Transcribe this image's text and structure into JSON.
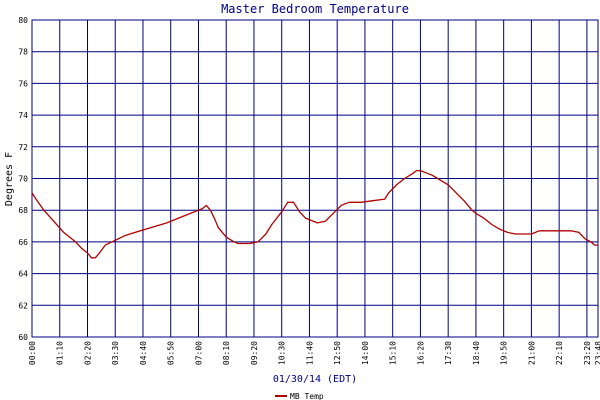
{
  "chart_data": {
    "type": "line",
    "title": "Master Bedroom Temperature",
    "xlabel": "01/30/14 (EDT)",
    "ylabel": "Degrees F",
    "ylim": [
      60,
      80
    ],
    "yticks": [
      "60",
      "62",
      "64",
      "66",
      "68",
      "70",
      "72",
      "74",
      "76",
      "78",
      "80"
    ],
    "xticks": [
      "00:00",
      "01:10",
      "02:20",
      "03:30",
      "04:40",
      "05:50",
      "07:00",
      "08:10",
      "09:20",
      "10:30",
      "11:40",
      "12:50",
      "14:00",
      "15:10",
      "16:20",
      "17:30",
      "18:40",
      "19:50",
      "21:00",
      "22:10",
      "23:20",
      "23:48"
    ],
    "xtick_minutes": [
      0,
      70,
      140,
      210,
      280,
      350,
      420,
      490,
      560,
      630,
      700,
      770,
      840,
      910,
      980,
      1050,
      1120,
      1190,
      1260,
      1330,
      1400,
      1428
    ],
    "xlim_minutes": [
      0,
      1428
    ],
    "grid": true,
    "legend_position": "bottom-center",
    "series": [
      {
        "name": "MB Temp",
        "color": "#b00000",
        "x_minutes": [
          0,
          10,
          30,
          55,
          80,
          110,
          125,
          140,
          150,
          160,
          170,
          185,
          210,
          235,
          260,
          300,
          340,
          380,
          420,
          430,
          440,
          450,
          460,
          470,
          490,
          510,
          520,
          550,
          570,
          590,
          605,
          630,
          645,
          660,
          675,
          690,
          720,
          740,
          760,
          780,
          800,
          830,
          860,
          890,
          900,
          920,
          940,
          960,
          970,
          980,
          990,
          1010,
          1030,
          1050,
          1070,
          1090,
          1110,
          1120,
          1140,
          1160,
          1180,
          1200,
          1220,
          1240,
          1260,
          1280,
          1300,
          1320,
          1340,
          1360,
          1380,
          1395,
          1410,
          1420,
          1428
        ],
        "values": [
          69.1,
          68.7,
          68.0,
          67.3,
          66.6,
          66.0,
          65.6,
          65.3,
          65.0,
          65.0,
          65.3,
          65.8,
          66.1,
          66.4,
          66.6,
          66.9,
          67.2,
          67.6,
          68.0,
          68.1,
          68.3,
          68.0,
          67.5,
          66.9,
          66.3,
          66.0,
          65.9,
          65.9,
          66.0,
          66.5,
          67.1,
          67.9,
          68.5,
          68.5,
          67.9,
          67.5,
          67.2,
          67.3,
          67.8,
          68.3,
          68.5,
          68.5,
          68.6,
          68.7,
          69.1,
          69.6,
          70.0,
          70.3,
          70.5,
          70.5,
          70.4,
          70.2,
          69.9,
          69.6,
          69.1,
          68.6,
          68.0,
          67.8,
          67.5,
          67.1,
          66.8,
          66.6,
          66.5,
          66.5,
          66.5,
          66.7,
          66.7,
          66.7,
          66.7,
          66.7,
          66.6,
          66.2,
          66.0,
          65.8,
          65.8
        ]
      }
    ]
  }
}
